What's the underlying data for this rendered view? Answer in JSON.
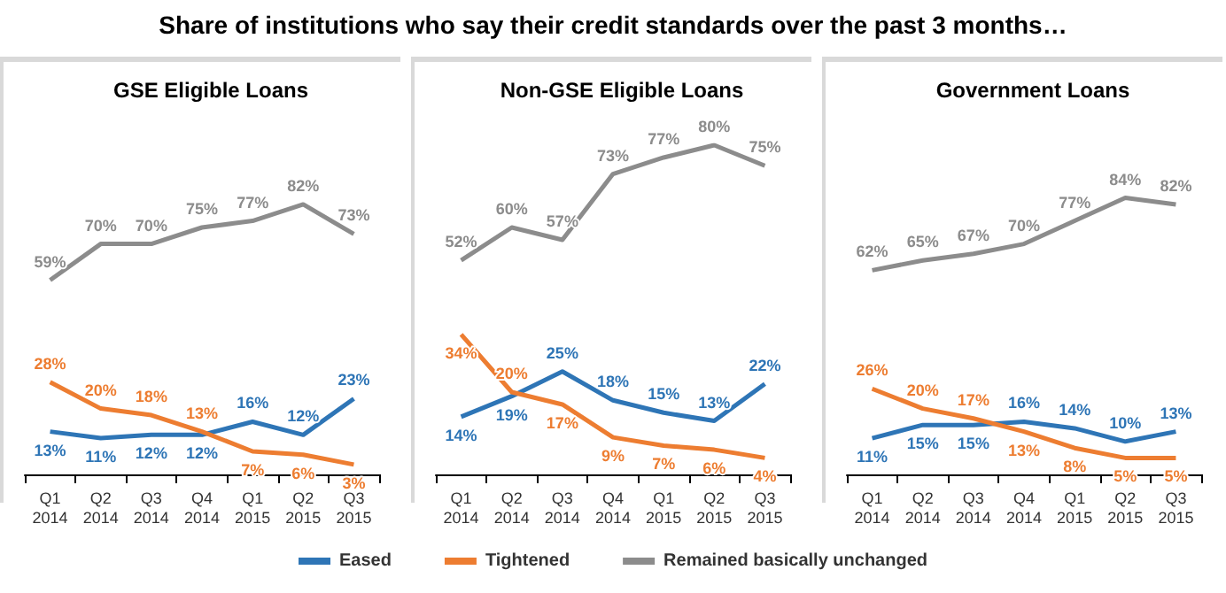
{
  "chart_data": [
    {
      "type": "line",
      "title": "GSE Eligible Loans",
      "annotations": [
        "Share of institutions who say their credit standards over the past 3 months…"
      ],
      "categories": [
        "Q1\n2014",
        "Q2\n2014",
        "Q3\n2014",
        "Q4\n2014",
        "Q1\n2015",
        "Q2\n2015",
        "Q3\n2015"
      ],
      "tick_labels": "x",
      "grid": false,
      "legend": false,
      "marker": "none",
      "series": [
        {
          "color": "#2e75b6",
          "values": [
            13,
            11,
            12,
            12,
            16,
            12,
            23
          ],
          "value_labels": [
            "13%",
            "11%",
            "12%",
            "12%",
            "16%",
            "12%",
            "23%"
          ]
        },
        {
          "color": "#ed7d31",
          "values": [
            28,
            20,
            18,
            13,
            7,
            6,
            3
          ],
          "value_labels": [
            "28%",
            "20%",
            "18%",
            "13%",
            "7%",
            "6%",
            "3%"
          ]
        },
        {
          "color": "#8c8c8c",
          "values": [
            59,
            70,
            70,
            75,
            77,
            82,
            73
          ],
          "value_labels": [
            "59%",
            "70%",
            "70%",
            "75%",
            "77%",
            "82%",
            "73%"
          ]
        }
      ]
    },
    {
      "type": "line",
      "title": "Non-GSE Eligible Loans",
      "categories": [
        "Q1\n2014",
        "Q2\n2014",
        "Q3\n2014",
        "Q4\n2014",
        "Q1\n2015",
        "Q2\n2015",
        "Q3\n2015"
      ],
      "tick_labels": "x",
      "grid": false,
      "legend": "bottom",
      "marker": "none",
      "series": [
        {
          "name": "Eased",
          "color": "#2e75b6",
          "values": [
            14,
            19,
            25,
            18,
            15,
            13,
            22
          ],
          "value_labels": [
            "14%",
            "19%",
            "25%",
            "18%",
            "15%",
            "13%",
            "22%"
          ]
        },
        {
          "name": "Tightened",
          "color": "#ed7d31",
          "values": [
            34,
            20,
            17,
            9,
            7,
            6,
            4
          ],
          "value_labels": [
            "34%",
            "20%",
            "17%",
            "9%",
            "7%",
            "6%",
            "4%"
          ]
        },
        {
          "name": "Remained basically unchanged",
          "color": "#8c8c8c",
          "values": [
            52,
            60,
            57,
            73,
            77,
            80,
            75
          ],
          "value_labels": [
            "52%",
            "60%",
            "57%",
            "73%",
            "77%",
            "80%",
            "75%"
          ]
        }
      ]
    },
    {
      "type": "line",
      "title": "Government Loans",
      "categories": [
        "Q1\n2014",
        "Q2\n2014",
        "Q3\n2014",
        "Q4\n2014",
        "Q1\n2015",
        "Q2\n2015",
        "Q3\n2015"
      ],
      "tick_labels": "x",
      "grid": false,
      "legend": false,
      "marker": "none",
      "series": [
        {
          "color": "#2e75b6",
          "values": [
            11,
            15,
            15,
            16,
            14,
            10,
            13
          ],
          "value_labels": [
            "11%",
            "15%",
            "15%",
            "16%",
            "14%",
            "10%",
            "13%"
          ]
        },
        {
          "color": "#ed7d31",
          "values": [
            26,
            20,
            17,
            13,
            8,
            5,
            5
          ],
          "value_labels": [
            "26%",
            "20%",
            "17%",
            "13%",
            "8%",
            "5%",
            "5%"
          ]
        },
        {
          "color": "#8c8c8c",
          "values": [
            62,
            65,
            67,
            70,
            77,
            84,
            82
          ],
          "value_labels": [
            "62%",
            "65%",
            "67%",
            "70%",
            "77%",
            "84%",
            "82%"
          ]
        }
      ]
    }
  ]
}
